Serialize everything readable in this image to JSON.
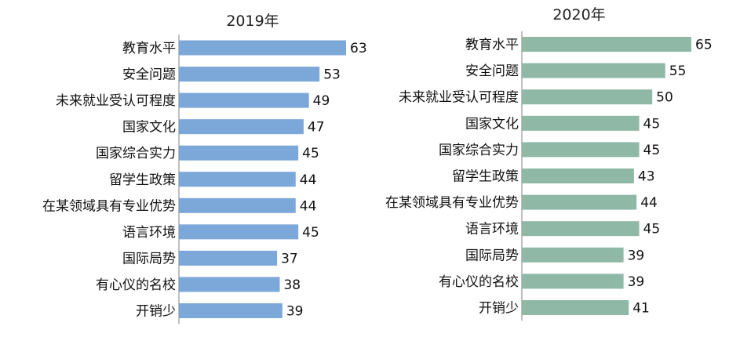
{
  "chart_data": [
    {
      "type": "bar",
      "orientation": "horizontal",
      "title": "2019年",
      "categories": [
        "教育水平",
        "安全问题",
        "未来就业受认可程度",
        "国家文化",
        "国家综合实力",
        "留学生政策",
        "在某领域具有专业优势",
        "语言环境",
        "国际局势",
        "有心仪的名校",
        "开销少"
      ],
      "values": [
        63,
        53,
        49,
        47,
        45,
        44,
        44,
        45,
        37,
        38,
        39
      ],
      "xlim": [
        0,
        63
      ],
      "bar_color": "#7ba7d9",
      "grid": false,
      "legend": "none"
    },
    {
      "type": "bar",
      "orientation": "horizontal",
      "title": "2020年",
      "categories": [
        "教育水平",
        "安全问题",
        "未来就业受认可程度",
        "国家文化",
        "国家综合实力",
        "留学生政策",
        "在某领域具有专业优势",
        "语言环境",
        "国际局势",
        "有心仪的名校",
        "开销少"
      ],
      "values": [
        65,
        55,
        50,
        45,
        45,
        43,
        44,
        45,
        39,
        39,
        41
      ],
      "xlim": [
        0,
        65
      ],
      "bar_color": "#8fb8a6",
      "grid": false,
      "legend": "none"
    }
  ]
}
